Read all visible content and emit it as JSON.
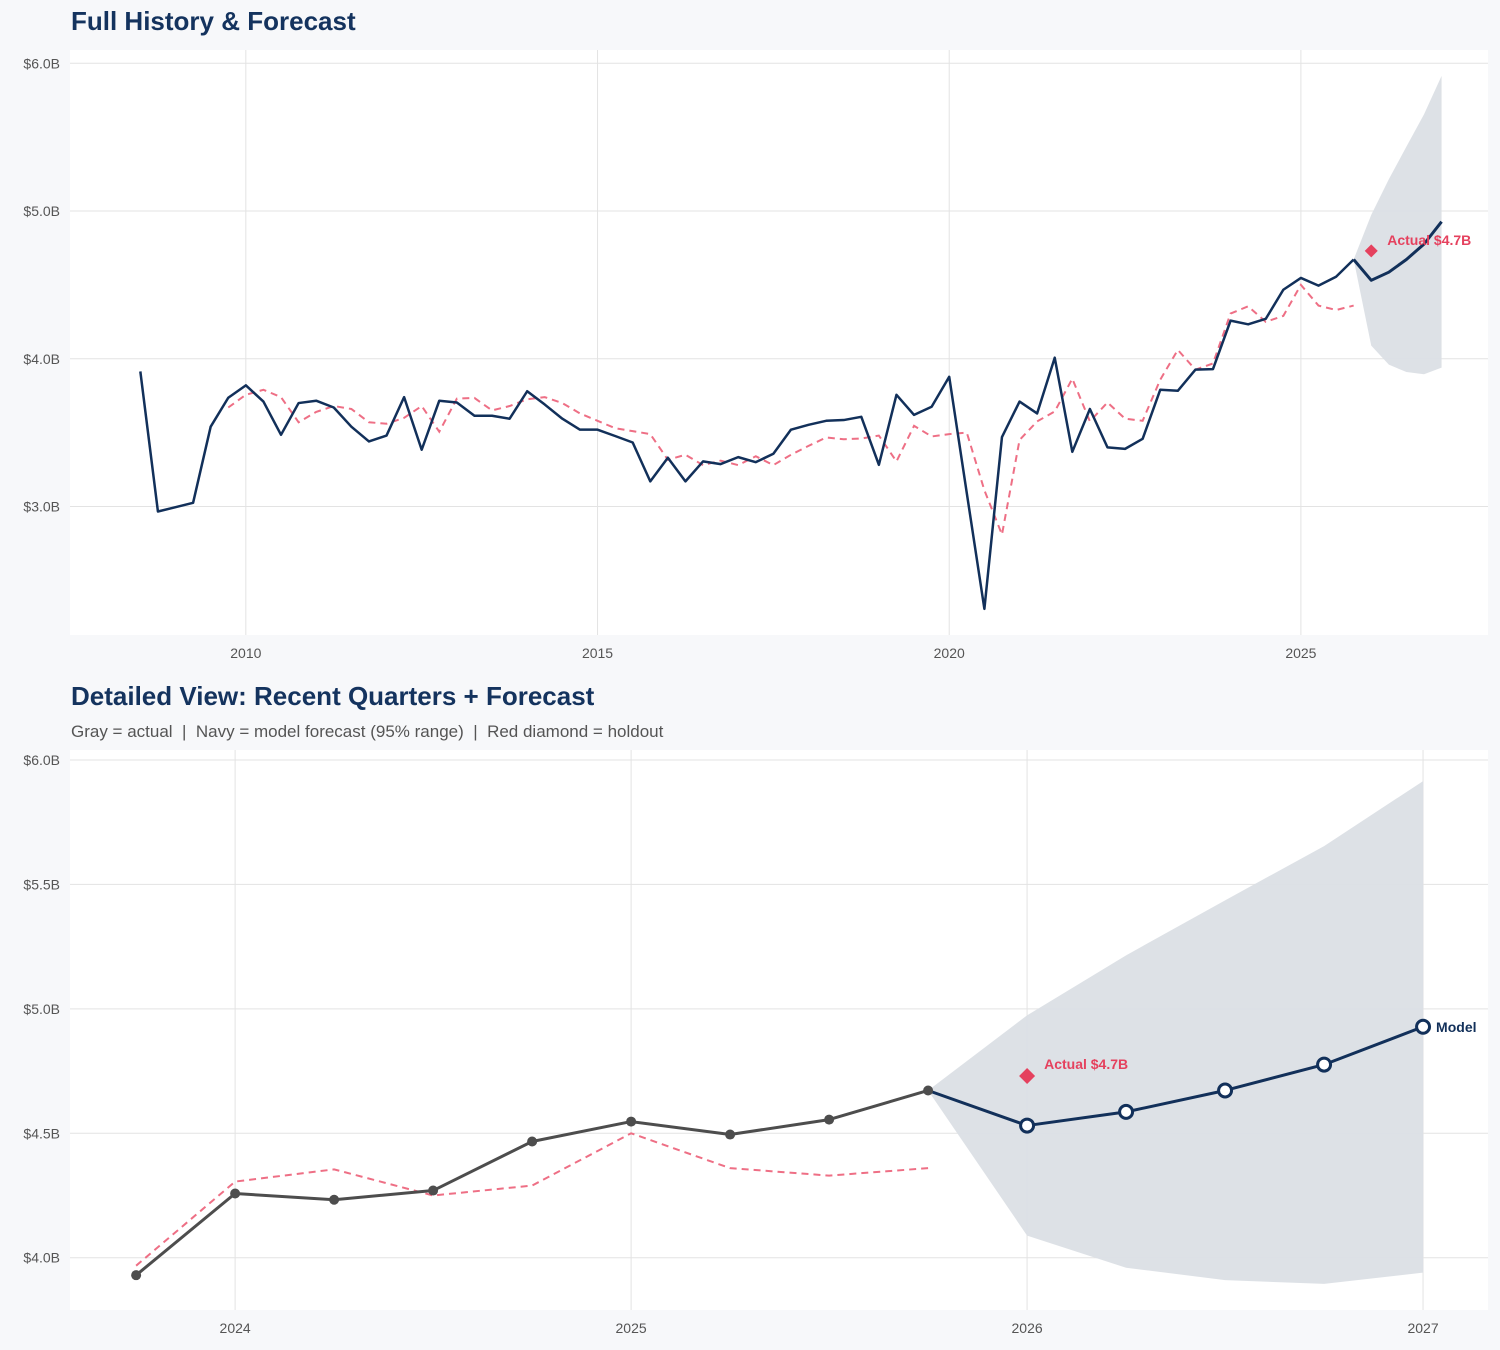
{
  "colors": {
    "actual_top": "#12305a",
    "actual_bottom": "#4d4d4d",
    "forecast": "#12305a",
    "fitted": "#ee6f85",
    "holdout": "#e5415e",
    "band": "#dbdfe5"
  },
  "chart_data": [
    {
      "type": "line",
      "title": "Full History & Forecast",
      "xlim": [
        "2007-Q3",
        "2027-Q4"
      ],
      "ylim": [
        2.13,
        6.09
      ],
      "x_ticks": [
        "2010",
        "2015",
        "2020",
        "2025"
      ],
      "y_ticks": [
        {
          "value": 3.0,
          "label": "$3.0B"
        },
        {
          "value": 4.0,
          "label": "$4.0B"
        },
        {
          "value": 5.0,
          "label": "$5.0B"
        },
        {
          "value": 6.0,
          "label": "$6.0B"
        }
      ],
      "grid": true,
      "actual": {
        "start": "2008-Q3",
        "values": [
          3.914,
          2.966,
          2.995,
          3.025,
          3.54,
          3.736,
          3.82,
          3.71,
          3.485,
          3.7,
          3.716,
          3.67,
          3.54,
          3.44,
          3.48,
          3.74,
          3.384,
          3.716,
          3.704,
          3.614,
          3.614,
          3.594,
          3.78,
          3.69,
          3.594,
          3.52,
          3.52,
          3.477,
          3.433,
          3.17,
          3.33,
          3.17,
          3.305,
          3.287,
          3.334,
          3.3,
          3.357,
          3.52,
          3.553,
          3.58,
          3.585,
          3.607,
          3.282,
          3.756,
          3.62,
          3.675,
          3.878,
          3.09,
          2.307,
          3.47,
          3.71,
          3.63,
          4.007,
          3.37,
          3.66,
          3.4,
          3.39,
          3.458,
          3.79,
          3.783,
          3.926,
          3.93,
          4.258,
          4.233,
          4.27,
          4.467,
          4.547,
          4.495,
          4.555,
          4.672
        ]
      },
      "fitted": {
        "start": "2009-Q4",
        "values": [
          3.67,
          3.756,
          3.79,
          3.74,
          3.57,
          3.64,
          3.68,
          3.66,
          3.57,
          3.56,
          3.6,
          3.68,
          3.506,
          3.73,
          3.735,
          3.65,
          3.68,
          3.726,
          3.74,
          3.7,
          3.63,
          3.58,
          3.53,
          3.51,
          3.49,
          3.316,
          3.35,
          3.28,
          3.31,
          3.28,
          3.34,
          3.28,
          3.35,
          3.41,
          3.467,
          3.455,
          3.46,
          3.48,
          3.305,
          3.546,
          3.474,
          3.49,
          3.5,
          3.11,
          2.81,
          3.45,
          3.576,
          3.643,
          3.865,
          3.576,
          3.704,
          3.594,
          3.58,
          3.858,
          4.06,
          3.926,
          3.968,
          4.306,
          4.355,
          4.25,
          4.29,
          4.5,
          4.36,
          4.33,
          4.36
        ]
      },
      "forecast": {
        "start": "2025-Q4",
        "values": [
          4.672,
          4.531,
          4.586,
          4.672,
          4.776,
          4.928
        ],
        "lower": [
          4.672,
          4.089,
          3.96,
          3.91,
          3.895,
          3.94
        ],
        "upper": [
          4.672,
          4.974,
          5.215,
          5.436,
          5.654,
          5.915
        ]
      },
      "holdout": {
        "x": "2026-Q1",
        "value": 4.73,
        "label": "Actual $4.7B"
      }
    },
    {
      "type": "line",
      "title": "Detailed View: Recent Quarters + Forecast",
      "subtitle": "Gray = actual  |  Navy = model forecast (95% range)  |  Red diamond = holdout",
      "xlim": [
        "2023-Q3",
        "2027-Q1"
      ],
      "ylim": [
        3.79,
        6.04
      ],
      "x_ticks": [
        "2024",
        "2025",
        "2026",
        "2027"
      ],
      "y_ticks": [
        {
          "value": 4.0,
          "label": "$4.0B"
        },
        {
          "value": 4.5,
          "label": "$4.5B"
        },
        {
          "value": 5.0,
          "label": "$5.0B"
        },
        {
          "value": 5.5,
          "label": "$5.5B"
        },
        {
          "value": 6.0,
          "label": "$6.0B"
        }
      ],
      "grid": true,
      "actual": {
        "start": "2023-Q4",
        "values": [
          3.93,
          4.258,
          4.233,
          4.27,
          4.467,
          4.547,
          4.495,
          4.555,
          4.672
        ]
      },
      "fitted": {
        "start": "2023-Q4",
        "values": [
          3.968,
          4.306,
          4.355,
          4.25,
          4.29,
          4.5,
          4.36,
          4.33,
          4.36
        ]
      },
      "forecast": {
        "start": "2025-Q4",
        "values": [
          4.672,
          4.531,
          4.586,
          4.672,
          4.776,
          4.928
        ],
        "lower": [
          4.672,
          4.089,
          3.96,
          3.91,
          3.895,
          3.94
        ],
        "upper": [
          4.672,
          4.974,
          5.215,
          5.436,
          5.654,
          5.915
        ],
        "label": "Model"
      },
      "holdout": {
        "x": "2026-Q1",
        "value": 4.73,
        "label": "Actual $4.7B"
      }
    }
  ]
}
